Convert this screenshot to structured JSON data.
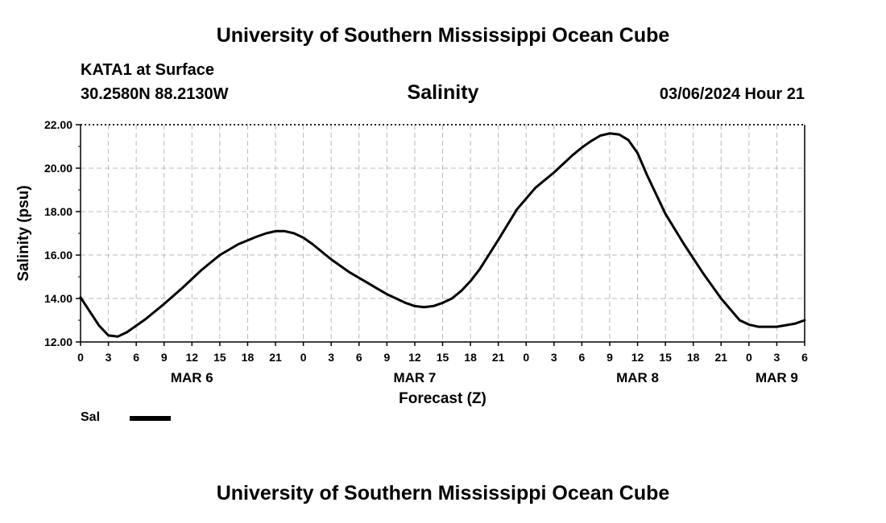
{
  "header": {
    "title": "University of Southern Mississippi Ocean Cube",
    "station": "KATA1 at Surface",
    "coords": "30.2580N  88.2130W",
    "datetime": "03/06/2024 Hour 21"
  },
  "footer": {
    "title": "University of Southern Mississippi Ocean Cube"
  },
  "legend": {
    "label": "Sal",
    "color": "#000000"
  },
  "chart_data": {
    "type": "line",
    "title": "Salinity",
    "xlabel": "Forecast (Z)",
    "ylabel": "Salinity (psu)",
    "xlim": [
      0,
      78
    ],
    "ylim": [
      12,
      22
    ],
    "yticks": [
      12,
      14,
      16,
      18,
      20,
      22
    ],
    "ytick_labels": [
      "12.00",
      "14.00",
      "16.00",
      "18.00",
      "20.00",
      "22.00"
    ],
    "xtick_labels": [
      "0",
      "3",
      "6",
      "9",
      "12",
      "15",
      "18",
      "21",
      "0",
      "3",
      "6",
      "9",
      "12",
      "15",
      "18",
      "21",
      "0",
      "3",
      "6",
      "9",
      "12",
      "15",
      "18",
      "21",
      "0",
      "3",
      "6"
    ],
    "date_labels": [
      {
        "label": "MAR 6",
        "hour": 12
      },
      {
        "label": "MAR 7",
        "hour": 36
      },
      {
        "label": "MAR 8",
        "hour": 60
      },
      {
        "label": "MAR 9",
        "hour": 75
      }
    ],
    "grid": true,
    "series": [
      {
        "name": "Sal",
        "x": [
          0,
          1,
          2,
          3,
          4,
          5,
          7,
          9,
          11,
          12,
          13,
          15,
          17,
          19,
          20,
          21,
          22,
          23,
          24,
          25,
          27,
          29,
          31,
          32,
          33,
          34,
          35,
          36,
          37,
          38,
          39,
          40,
          41,
          42,
          43,
          45,
          47,
          49,
          51,
          52,
          53,
          54,
          55,
          56,
          57,
          58,
          59,
          60,
          61,
          63,
          65,
          67,
          69,
          71,
          72,
          73,
          75,
          77,
          78
        ],
        "values": [
          14.05,
          13.4,
          12.75,
          12.3,
          12.25,
          12.45,
          13.05,
          13.75,
          14.5,
          14.9,
          15.3,
          16.0,
          16.5,
          16.85,
          17.0,
          17.1,
          17.1,
          17.0,
          16.8,
          16.5,
          15.8,
          15.2,
          14.7,
          14.45,
          14.2,
          14.0,
          13.8,
          13.65,
          13.6,
          13.65,
          13.8,
          14.0,
          14.35,
          14.8,
          15.35,
          16.7,
          18.1,
          19.1,
          19.8,
          20.2,
          20.6,
          20.95,
          21.25,
          21.5,
          21.6,
          21.55,
          21.3,
          20.7,
          19.7,
          17.9,
          16.5,
          15.2,
          14.0,
          13.0,
          12.8,
          12.7,
          12.7,
          12.85,
          13.0
        ]
      }
    ]
  }
}
